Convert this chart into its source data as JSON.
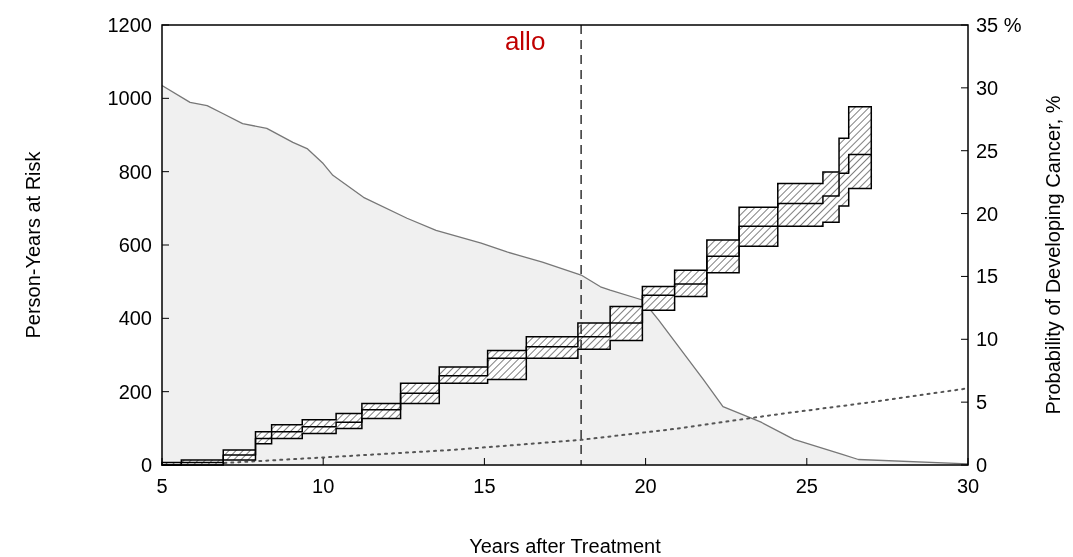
{
  "chart_data": {
    "type": "area",
    "xlabel": "Years after Treatment",
    "ylabel": "Person-Years at Risk",
    "y2label": "Probability of Developing Cancer, %",
    "xlim": [
      5,
      30
    ],
    "xticks": [
      5,
      10,
      15,
      20,
      25,
      30
    ],
    "ylim": [
      0,
      1200
    ],
    "yticks": [
      0,
      200,
      400,
      600,
      800,
      1000,
      1200
    ],
    "y2lim": [
      0,
      35
    ],
    "y2ticks": [
      0,
      5,
      10,
      15,
      20,
      25,
      30,
      {
        "value": 35,
        "label": "35 %"
      }
    ],
    "ref_lines": [
      {
        "axis": "x",
        "value": 18,
        "label": "allo",
        "color": "#333333",
        "line_style": "dashed"
      }
    ],
    "series": [
      {
        "color": "#f0f0f0",
        "x": [
          5,
          5.87,
          6.4,
          6.9,
          7.5,
          8.25,
          9.06,
          9.5,
          10.0,
          10.3,
          11.25,
          12.6,
          13.5,
          14.9,
          15.7,
          16.8,
          18.0,
          18.6,
          18.9,
          19.9,
          20.4,
          21.1,
          21.8,
          22.4,
          23.6,
          24.6,
          26.1,
          26.6,
          30
        ],
        "values": [
          1035,
          989,
          980,
          958,
          931,
          918,
          880,
          863,
          822,
          790,
          730,
          673,
          640,
          605,
          581,
          553,
          518,
          486,
          477,
          450,
          396,
          314,
          232,
          159,
          116,
          70,
          29,
          15,
          3
        ]
      },
      {
        "type": "line",
        "axis": "y2",
        "color": "#555555",
        "line_style": "dotted",
        "x": [
          6.5,
          10,
          14,
          18,
          21,
          24,
          27,
          30
        ],
        "values": [
          0.1,
          0.6,
          1.2,
          2.0,
          2.9,
          4.0,
          5.0,
          6.1
        ]
      },
      {
        "type": "step",
        "axis": "y2",
        "color": "#000000",
        "x": [
          5,
          5.6,
          6.9,
          7.9,
          8.4,
          9.35,
          10.4,
          11.2,
          12.4,
          13.6,
          15.1,
          16.3,
          17.9,
          18.9,
          19.9,
          20.9,
          21.9,
          22.9,
          24.1,
          25.5,
          26.0,
          26.3,
          27.0
        ],
        "values": [
          0,
          0.2,
          0.8,
          2.1,
          2.65,
          3.05,
          3.4,
          4.4,
          5.7,
          7.1,
          8.5,
          9.4,
          10.2,
          11.3,
          13.5,
          14.4,
          16.6,
          19.0,
          20.8,
          21.4,
          23.2,
          24.7,
          24.7
        ],
        "upper": [
          0.2,
          0.4,
          1.2,
          2.65,
          3.2,
          3.6,
          4.1,
          4.9,
          6.5,
          7.8,
          9.1,
          10.2,
          11.3,
          12.6,
          14.2,
          15.5,
          17.9,
          20.5,
          22.4,
          23.3,
          26.0,
          28.5,
          28.5
        ],
        "lower": [
          0,
          0,
          0.4,
          1.7,
          2.1,
          2.5,
          2.9,
          3.7,
          4.9,
          6.5,
          6.8,
          8.5,
          9.2,
          9.9,
          12.3,
          13.4,
          15.3,
          17.4,
          19.0,
          19.3,
          20.6,
          22.0,
          22.0
        ]
      }
    ]
  }
}
